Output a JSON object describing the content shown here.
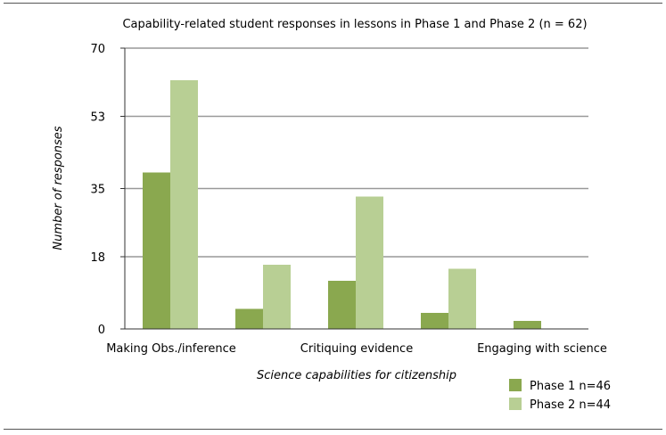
{
  "chart_data": {
    "type": "bar",
    "title": "Capability-related student responses in lessons in Phase 1 and Phase 2 (n = 62)",
    "xlabel": "Science capabilities for citizenship",
    "ylabel": "Number of responses",
    "ylim": [
      0,
      70
    ],
    "yticks": [
      "0",
      "18",
      "35",
      "53",
      "70"
    ],
    "categories": [
      "Making Obs./inference",
      "",
      "Critiquing evidence",
      "",
      "Engaging with science"
    ],
    "series": [
      {
        "name": "Phase 1  n=46",
        "color": "#8aa84f",
        "values": [
          39,
          5,
          12,
          4,
          2
        ]
      },
      {
        "name": "Phase 2 n=44",
        "color": "#b8cf94",
        "values": [
          62,
          16,
          33,
          15,
          0
        ]
      }
    ],
    "grid": true,
    "legend_position": "bottom-right"
  }
}
